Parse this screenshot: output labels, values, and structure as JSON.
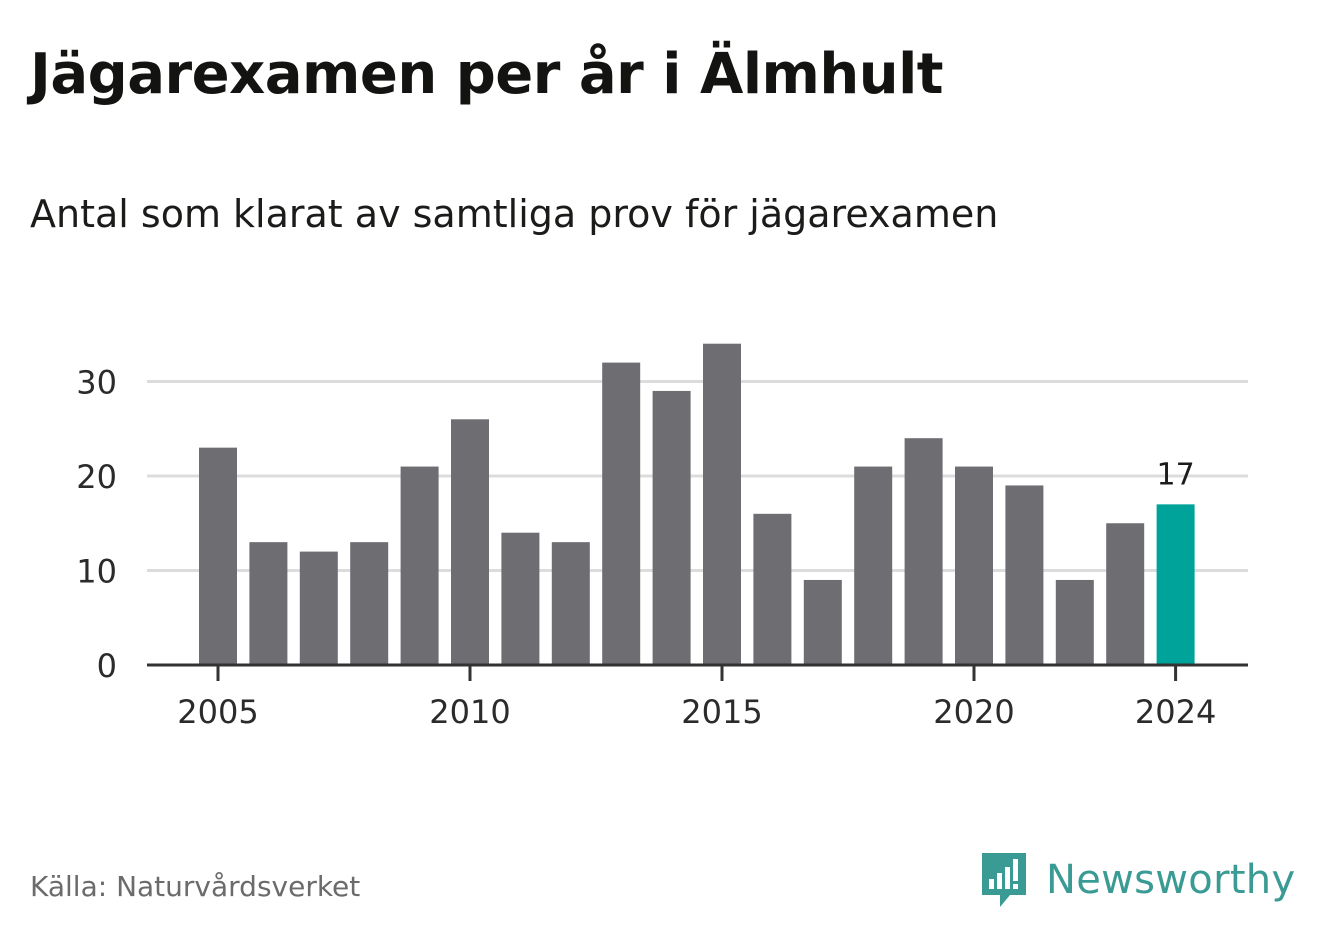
{
  "title": "Jägarexamen per år i Älmhult",
  "subtitle": "Antal som klarat av samtliga prov för jägarexamen",
  "source": "Källa: Naturvårdsverket",
  "brand": {
    "name": "Newsworthy",
    "icon": "newsworthy-logo-icon",
    "color": "#3a9b94"
  },
  "colors": {
    "bar": "#6e6d72",
    "highlight": "#00a39a",
    "grid": "#dcdcdc",
    "axis": "#333333"
  },
  "chart_data": {
    "type": "bar",
    "categories": [
      "2005",
      "2006",
      "2007",
      "2008",
      "2009",
      "2010",
      "2011",
      "2012",
      "2013",
      "2014",
      "2015",
      "2016",
      "2017",
      "2018",
      "2019",
      "2020",
      "2021",
      "2022",
      "2023",
      "2024"
    ],
    "values": [
      23,
      13,
      12,
      13,
      21,
      26,
      14,
      13,
      32,
      29,
      34,
      16,
      9,
      21,
      24,
      21,
      19,
      9,
      15,
      17
    ],
    "highlight_category": "2024",
    "highlight_label": "17",
    "y_ticks": [
      0,
      10,
      20,
      30
    ],
    "x_ticks": [
      "2005",
      "2010",
      "2015",
      "2020",
      "2024"
    ],
    "ylim": [
      0,
      34
    ],
    "grid": true
  }
}
